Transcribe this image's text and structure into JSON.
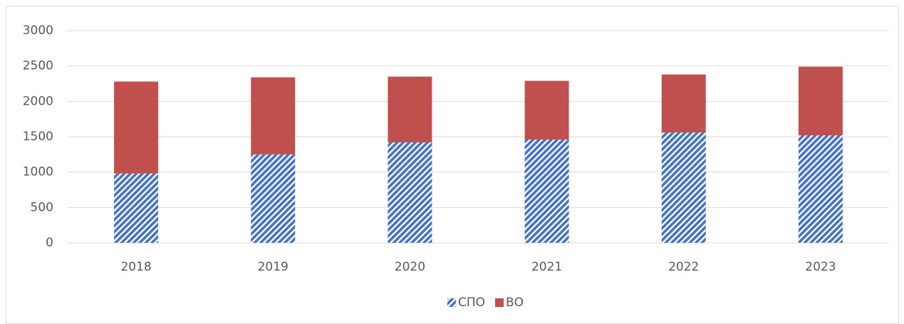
{
  "chart_data": {
    "type": "stacked-bar",
    "categories": [
      "2018",
      "2019",
      "2020",
      "2021",
      "2022",
      "2023"
    ],
    "series": [
      {
        "name": "СПО",
        "color": "#4472c4",
        "pattern": "diagonal",
        "values": [
          980,
          1250,
          1420,
          1460,
          1560,
          1520
        ]
      },
      {
        "name": "ВО",
        "color": "#c0504d",
        "values": [
          1300,
          1090,
          930,
          830,
          820,
          970
        ]
      }
    ],
    "ylim": [
      0,
      3000
    ],
    "yticks": [
      0,
      500,
      1000,
      1500,
      2000,
      2500,
      3000
    ],
    "grid": true,
    "legend": "bottom"
  }
}
